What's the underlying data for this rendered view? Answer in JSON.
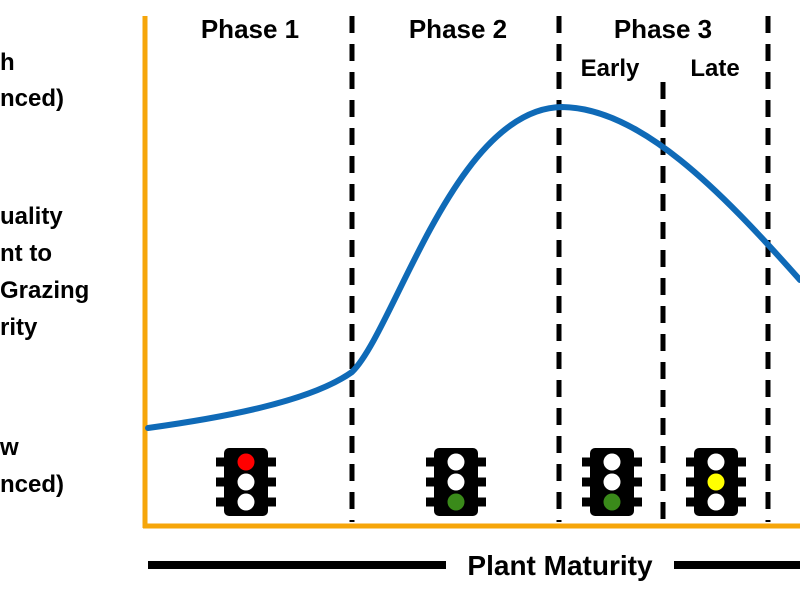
{
  "y_axis": {
    "top_label": [
      "h",
      "nced)"
    ],
    "mid_label": [
      "uality",
      "nt to",
      "Grazing",
      "rity"
    ],
    "bottom_label": [
      "w",
      "nced)"
    ]
  },
  "x_axis": {
    "label": "Plant Maturity"
  },
  "phases": [
    {
      "label": "Phase 1"
    },
    {
      "label": "Phase 2"
    },
    {
      "label": "Phase 3",
      "sub_labels": [
        "Early",
        "Late"
      ]
    }
  ],
  "traffic_lights": [
    {
      "stage": "Phase 1",
      "lit": "top",
      "color": "#ff0000"
    },
    {
      "stage": "Phase 2",
      "lit": "bottom",
      "color": "#3a8a1a"
    },
    {
      "stage": "Early",
      "lit": "bottom",
      "color": "#3a8a1a"
    },
    {
      "stage": "Late",
      "lit": "middle",
      "color": "#ffff00"
    }
  ],
  "colors": {
    "axis": "#f6a60a",
    "curve": "#0f6ab7",
    "off_lamp": "#ffffff"
  }
}
